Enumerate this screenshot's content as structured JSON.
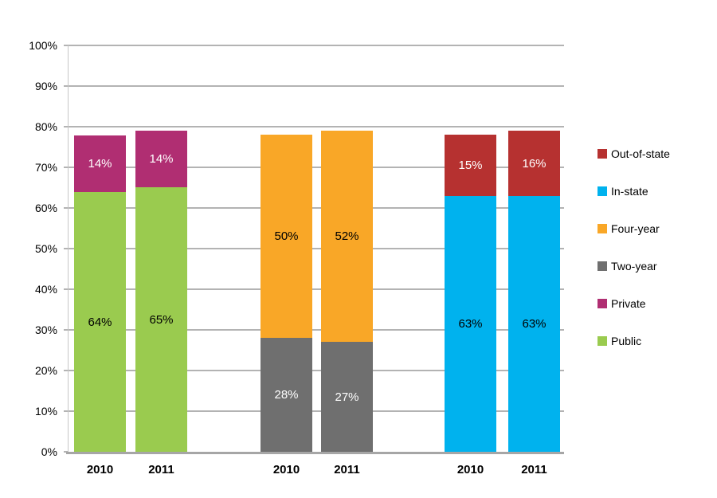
{
  "chart_data": {
    "type": "bar",
    "stacked": true,
    "title": "",
    "xlabel": "",
    "ylabel": "",
    "y_axis": {
      "min": 0,
      "max": 100,
      "tick_step": 10,
      "tick_labels": [
        "0%",
        "10%",
        "20%",
        "30%",
        "40%",
        "50%",
        "60%",
        "70%",
        "80%",
        "90%",
        "100%"
      ],
      "grid": true
    },
    "bars": [
      {
        "category": "2010",
        "group": "public-private",
        "segments": [
          {
            "series": "Public",
            "value": 64,
            "label": "64%"
          },
          {
            "series": "Private",
            "value": 14,
            "label": "14%"
          }
        ]
      },
      {
        "category": "2011",
        "group": "public-private",
        "segments": [
          {
            "series": "Public",
            "value": 65,
            "label": "65%"
          },
          {
            "series": "Private",
            "value": 14,
            "label": "14%"
          }
        ]
      },
      {
        "category": "2010",
        "group": "two-four-year",
        "segments": [
          {
            "series": "Two-year",
            "value": 28,
            "label": "28%"
          },
          {
            "series": "Four-year",
            "value": 50,
            "label": "50%"
          }
        ]
      },
      {
        "category": "2011",
        "group": "two-four-year",
        "segments": [
          {
            "series": "Two-year",
            "value": 27,
            "label": "27%"
          },
          {
            "series": "Four-year",
            "value": 52,
            "label": "52%"
          }
        ]
      },
      {
        "category": "2010",
        "group": "in-out-state",
        "segments": [
          {
            "series": "In-state",
            "value": 63,
            "label": "63%"
          },
          {
            "series": "Out-of-state",
            "value": 15,
            "label": "15%"
          }
        ]
      },
      {
        "category": "2011",
        "group": "in-out-state",
        "segments": [
          {
            "series": "In-state",
            "value": 63,
            "label": "63%"
          },
          {
            "series": "Out-of-state",
            "value": 16,
            "label": "16%"
          }
        ]
      }
    ],
    "series_styles": {
      "Public": {
        "color": "#9ACB4F",
        "label_color": "#000000"
      },
      "Private": {
        "color": "#B02E72",
        "label_color": "#FFFFFF"
      },
      "Two-year": {
        "color": "#6F6F6F",
        "label_color": "#FFFFFF"
      },
      "Four-year": {
        "color": "#F9A727",
        "label_color": "#000000"
      },
      "In-state": {
        "color": "#00B2EE",
        "label_color": "#000000"
      },
      "Out-of-state": {
        "color": "#B63130",
        "label_color": "#FFFFFF"
      }
    },
    "legend": {
      "position": "right",
      "items": [
        "Out-of-state",
        "In-state",
        "Four-year",
        "Two-year",
        "Private",
        "Public"
      ]
    }
  },
  "colors": {
    "background": "#FFFFFF",
    "gridline": "#B3B3B3",
    "axis_line": "#A6A6A6",
    "plot_border": "#C6C6C6",
    "text": "#000000"
  }
}
